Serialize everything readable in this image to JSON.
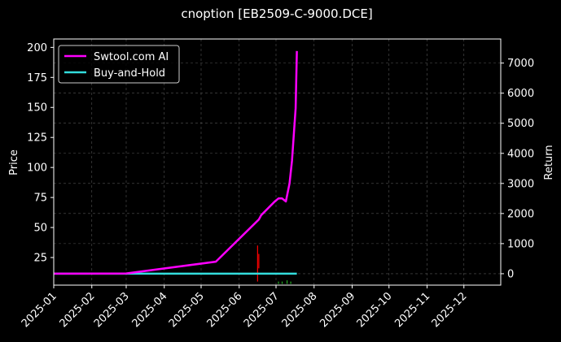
{
  "chart_data": {
    "type": "line",
    "title": "cnoption [EB2509-C-9000.DCE]",
    "ylabel_left": "Price",
    "ylabel_right": "Return",
    "x_ticks": [
      "2025-01",
      "2025-02",
      "2025-03",
      "2025-04",
      "2025-05",
      "2025-06",
      "2025-07",
      "2025-08",
      "2025-09",
      "2025-10",
      "2025-11",
      "2025-12"
    ],
    "y_left_ticks": [
      "25",
      "50",
      "75",
      "100",
      "125",
      "150",
      "175",
      "200"
    ],
    "y_right_ticks": [
      "0",
      "1000",
      "2000",
      "3000",
      "4000",
      "5000",
      "6000",
      "7000"
    ],
    "xlim": [
      "2025-01-01",
      "2025-12-31"
    ],
    "ylim_left": [
      2,
      207
    ],
    "ylim_right": [
      -380,
      7800
    ],
    "grid": true,
    "legend_position": "top-left",
    "series": [
      {
        "name": "Swtool.com AI",
        "axis": "right",
        "color": "#ff00ff",
        "points": [
          {
            "x": "2025-01-01",
            "y": 0
          },
          {
            "x": "2025-03-01",
            "y": 10
          },
          {
            "x": "2025-05-13",
            "y": 400
          },
          {
            "x": "2025-06-17",
            "y": 1800
          },
          {
            "x": "2025-06-19",
            "y": 1950
          },
          {
            "x": "2025-06-30",
            "y": 2400
          },
          {
            "x": "2025-07-03",
            "y": 2500
          },
          {
            "x": "2025-07-06",
            "y": 2500
          },
          {
            "x": "2025-07-09",
            "y": 2400
          },
          {
            "x": "2025-07-12",
            "y": 3000
          },
          {
            "x": "2025-07-14",
            "y": 3750
          },
          {
            "x": "2025-07-17",
            "y": 5500
          },
          {
            "x": "2025-07-18",
            "y": 7400
          }
        ]
      },
      {
        "name": "Buy-and-Hold",
        "axis": "right",
        "color": "#33dddd",
        "points": [
          {
            "x": "2025-01-01",
            "y": 0
          },
          {
            "x": "2025-07-18",
            "y": 0
          }
        ]
      }
    ],
    "price_candles": [
      {
        "x": "2025-06-16",
        "low": 5,
        "high": 35,
        "color": "#ff0000"
      },
      {
        "x": "2025-06-17",
        "low": 16,
        "high": 28,
        "color": "#ff0000"
      },
      {
        "x": "2025-07-03",
        "low": 3,
        "high": 5,
        "color": "#22aa22"
      },
      {
        "x": "2025-07-06",
        "low": 3,
        "high": 5,
        "color": "#22aa22"
      },
      {
        "x": "2025-07-10",
        "low": 3,
        "high": 6,
        "color": "#22aa22"
      },
      {
        "x": "2025-07-13",
        "low": 3,
        "high": 5,
        "color": "#22aa22"
      }
    ]
  }
}
